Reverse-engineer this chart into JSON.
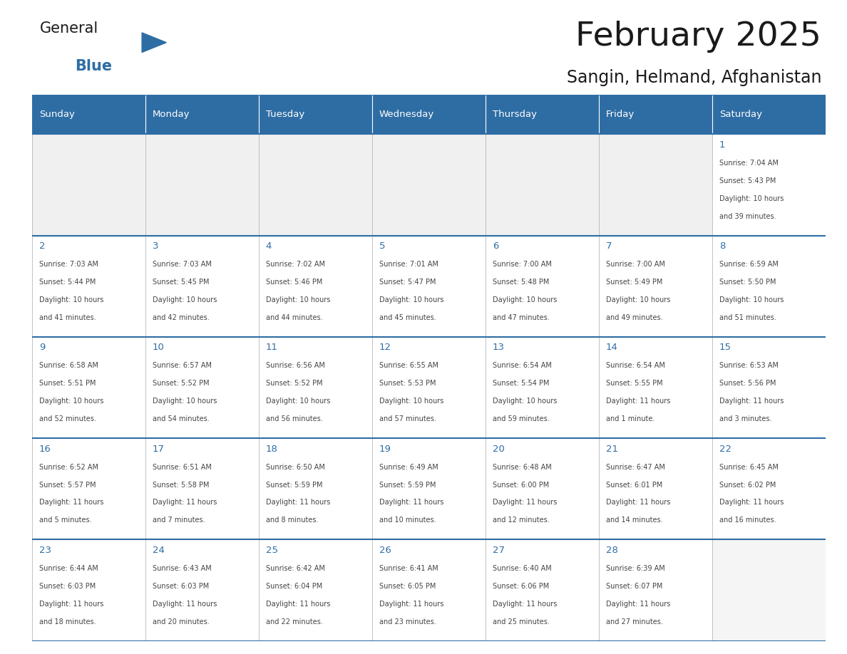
{
  "title": "February 2025",
  "subtitle": "Sangin, Helmand, Afghanistan",
  "days_of_week": [
    "Sunday",
    "Monday",
    "Tuesday",
    "Wednesday",
    "Thursday",
    "Friday",
    "Saturday"
  ],
  "header_bg": "#2E6DA4",
  "header_text": "#FFFFFF",
  "cell_bg": "#FFFFFF",
  "cell_bg_alt": "#F5F5F5",
  "border_color": "#2E6DA4",
  "border_light": "#CCCCCC",
  "text_color": "#444444",
  "day_num_color": "#2E6DA4",
  "calendar_data": [
    [
      null,
      null,
      null,
      null,
      null,
      null,
      {
        "day": 1,
        "sunrise": "7:04 AM",
        "sunset": "5:43 PM",
        "daylight": "10 hours",
        "daylight2": "and 39 minutes."
      }
    ],
    [
      {
        "day": 2,
        "sunrise": "7:03 AM",
        "sunset": "5:44 PM",
        "daylight": "10 hours",
        "daylight2": "and 41 minutes."
      },
      {
        "day": 3,
        "sunrise": "7:03 AM",
        "sunset": "5:45 PM",
        "daylight": "10 hours",
        "daylight2": "and 42 minutes."
      },
      {
        "day": 4,
        "sunrise": "7:02 AM",
        "sunset": "5:46 PM",
        "daylight": "10 hours",
        "daylight2": "and 44 minutes."
      },
      {
        "day": 5,
        "sunrise": "7:01 AM",
        "sunset": "5:47 PM",
        "daylight": "10 hours",
        "daylight2": "and 45 minutes."
      },
      {
        "day": 6,
        "sunrise": "7:00 AM",
        "sunset": "5:48 PM",
        "daylight": "10 hours",
        "daylight2": "and 47 minutes."
      },
      {
        "day": 7,
        "sunrise": "7:00 AM",
        "sunset": "5:49 PM",
        "daylight": "10 hours",
        "daylight2": "and 49 minutes."
      },
      {
        "day": 8,
        "sunrise": "6:59 AM",
        "sunset": "5:50 PM",
        "daylight": "10 hours",
        "daylight2": "and 51 minutes."
      }
    ],
    [
      {
        "day": 9,
        "sunrise": "6:58 AM",
        "sunset": "5:51 PM",
        "daylight": "10 hours",
        "daylight2": "and 52 minutes."
      },
      {
        "day": 10,
        "sunrise": "6:57 AM",
        "sunset": "5:52 PM",
        "daylight": "10 hours",
        "daylight2": "and 54 minutes."
      },
      {
        "day": 11,
        "sunrise": "6:56 AM",
        "sunset": "5:52 PM",
        "daylight": "10 hours",
        "daylight2": "and 56 minutes."
      },
      {
        "day": 12,
        "sunrise": "6:55 AM",
        "sunset": "5:53 PM",
        "daylight": "10 hours",
        "daylight2": "and 57 minutes."
      },
      {
        "day": 13,
        "sunrise": "6:54 AM",
        "sunset": "5:54 PM",
        "daylight": "10 hours",
        "daylight2": "and 59 minutes."
      },
      {
        "day": 14,
        "sunrise": "6:54 AM",
        "sunset": "5:55 PM",
        "daylight": "11 hours",
        "daylight2": "and 1 minute."
      },
      {
        "day": 15,
        "sunrise": "6:53 AM",
        "sunset": "5:56 PM",
        "daylight": "11 hours",
        "daylight2": "and 3 minutes."
      }
    ],
    [
      {
        "day": 16,
        "sunrise": "6:52 AM",
        "sunset": "5:57 PM",
        "daylight": "11 hours",
        "daylight2": "and 5 minutes."
      },
      {
        "day": 17,
        "sunrise": "6:51 AM",
        "sunset": "5:58 PM",
        "daylight": "11 hours",
        "daylight2": "and 7 minutes."
      },
      {
        "day": 18,
        "sunrise": "6:50 AM",
        "sunset": "5:59 PM",
        "daylight": "11 hours",
        "daylight2": "and 8 minutes."
      },
      {
        "day": 19,
        "sunrise": "6:49 AM",
        "sunset": "5:59 PM",
        "daylight": "11 hours",
        "daylight2": "and 10 minutes."
      },
      {
        "day": 20,
        "sunrise": "6:48 AM",
        "sunset": "6:00 PM",
        "daylight": "11 hours",
        "daylight2": "and 12 minutes."
      },
      {
        "day": 21,
        "sunrise": "6:47 AM",
        "sunset": "6:01 PM",
        "daylight": "11 hours",
        "daylight2": "and 14 minutes."
      },
      {
        "day": 22,
        "sunrise": "6:45 AM",
        "sunset": "6:02 PM",
        "daylight": "11 hours",
        "daylight2": "and 16 minutes."
      }
    ],
    [
      {
        "day": 23,
        "sunrise": "6:44 AM",
        "sunset": "6:03 PM",
        "daylight": "11 hours",
        "daylight2": "and 18 minutes."
      },
      {
        "day": 24,
        "sunrise": "6:43 AM",
        "sunset": "6:03 PM",
        "daylight": "11 hours",
        "daylight2": "and 20 minutes."
      },
      {
        "day": 25,
        "sunrise": "6:42 AM",
        "sunset": "6:04 PM",
        "daylight": "11 hours",
        "daylight2": "and 22 minutes."
      },
      {
        "day": 26,
        "sunrise": "6:41 AM",
        "sunset": "6:05 PM",
        "daylight": "11 hours",
        "daylight2": "and 23 minutes."
      },
      {
        "day": 27,
        "sunrise": "6:40 AM",
        "sunset": "6:06 PM",
        "daylight": "11 hours",
        "daylight2": "and 25 minutes."
      },
      {
        "day": 28,
        "sunrise": "6:39 AM",
        "sunset": "6:07 PM",
        "daylight": "11 hours",
        "daylight2": "and 27 minutes."
      },
      null
    ]
  ]
}
